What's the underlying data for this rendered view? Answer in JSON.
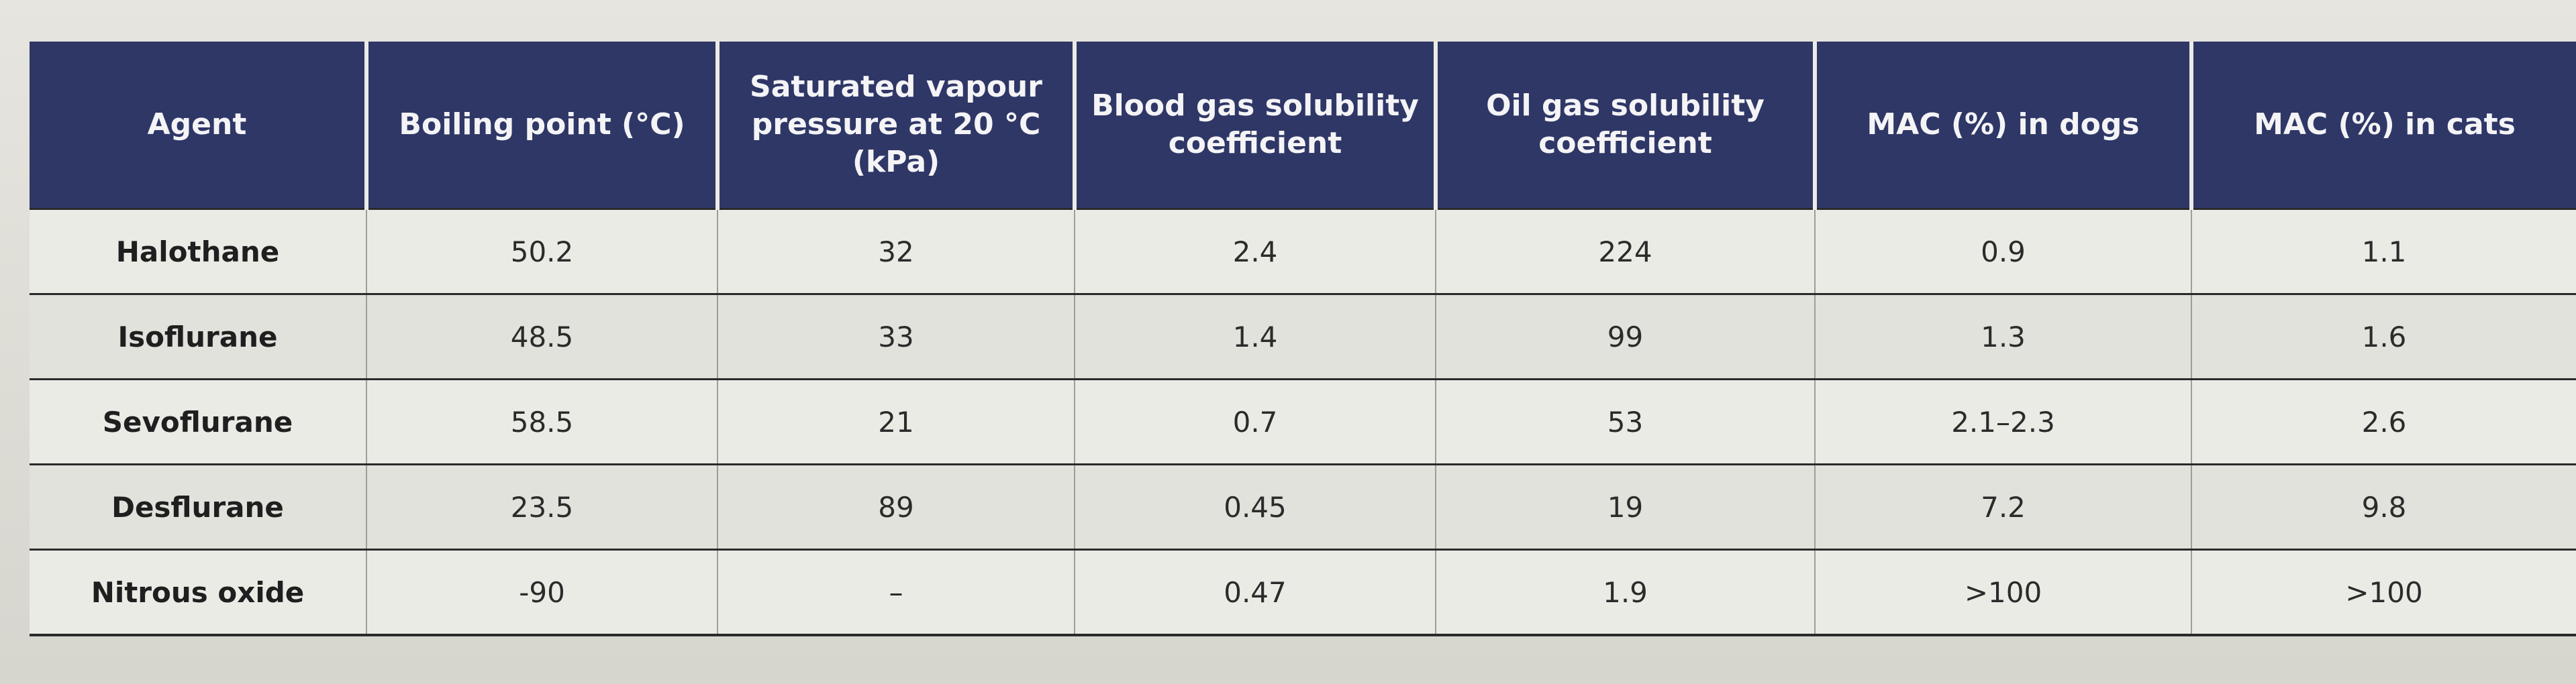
{
  "table": {
    "headers": [
      "Agent",
      "Boiling point (°C)",
      "Saturated vapour pressure at 20 °C (kPa)",
      "Blood gas solubility coefficient",
      "Oil gas solubility coefficient",
      "MAC (%) in dogs",
      "MAC (%) in cats"
    ],
    "rows": [
      [
        "Halothane",
        "50.2",
        "32",
        "2.4",
        "224",
        "0.9",
        "1.1"
      ],
      [
        "Isoflurane",
        "48.5",
        "33",
        "1.4",
        "99",
        "1.3",
        "1.6"
      ],
      [
        "Sevoflurane",
        "58.5",
        "21",
        "0.7",
        "53",
        "2.1–2.3",
        "2.6"
      ],
      [
        "Desflurane",
        "23.5",
        "89",
        "0.45",
        "19",
        "7.2",
        "9.8"
      ],
      [
        "Nitrous oxide",
        "-90",
        "–",
        "0.47",
        "1.9",
        ">100",
        ">100"
      ]
    ]
  }
}
